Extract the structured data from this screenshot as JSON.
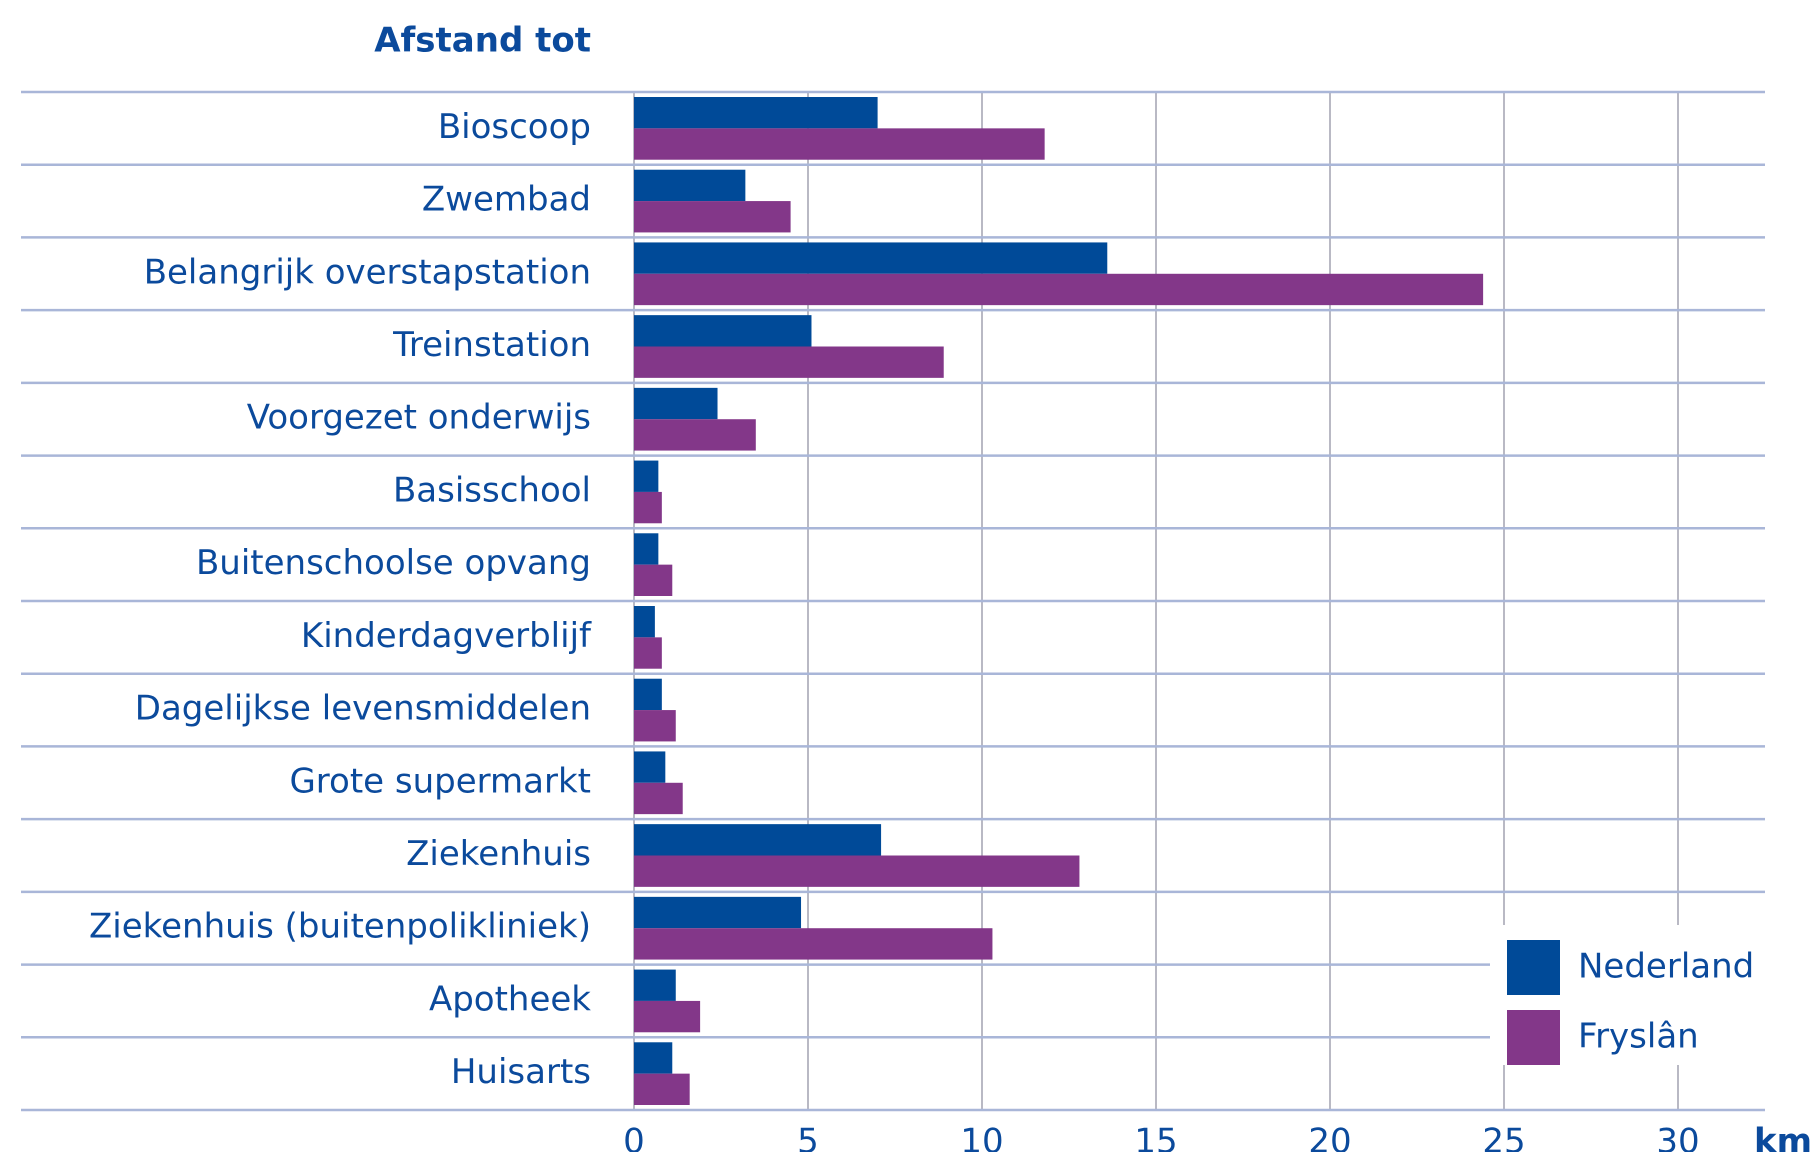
{
  "chart_data": {
    "type": "bar",
    "orientation": "horizontal",
    "title": "Afstand tot",
    "xlabel": "km",
    "categories": [
      "Bioscoop",
      "Zwembad",
      "Belangrijk overstapstation",
      "Treinstation",
      "Voorgezet onderwijs",
      "Basisschool",
      "Buitenschoolse opvang",
      "Kinderdagverblijf",
      "Dagelijkse levensmiddelen",
      "Grote supermarkt",
      "Ziekenhuis",
      "Ziekenhuis (buitenpolikliniek)",
      "Apotheek",
      "Huisarts"
    ],
    "series": [
      {
        "name": "Nederland",
        "color": "#004a98",
        "values": [
          7.0,
          3.2,
          13.6,
          5.1,
          2.4,
          0.7,
          0.7,
          0.6,
          0.8,
          0.9,
          7.1,
          4.8,
          1.2,
          1.1
        ]
      },
      {
        "name": "Fryslân",
        "color": "#833789",
        "values": [
          11.8,
          4.5,
          24.4,
          8.9,
          3.5,
          0.8,
          1.1,
          0.8,
          1.2,
          1.4,
          12.8,
          10.3,
          1.9,
          1.6
        ]
      }
    ],
    "xlim": [
      0,
      30
    ],
    "xticks": [
      0,
      5,
      10,
      15,
      20,
      25,
      30
    ],
    "grid": true,
    "legend": "lower right"
  }
}
